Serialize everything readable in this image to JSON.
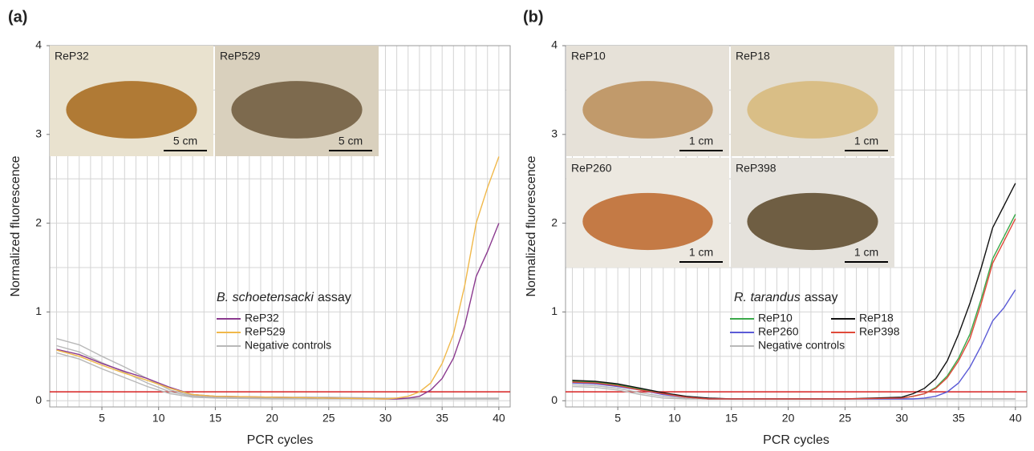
{
  "chart_data": [
    {
      "type": "line",
      "panel_label": "(a)",
      "x_label": "PCR cycles",
      "y_label": "Normalized fluorescence",
      "assay_species": "B. schoetensacki",
      "assay_label": "assay",
      "x": [
        1,
        3,
        5,
        7,
        9,
        11,
        13,
        15,
        20,
        25,
        30,
        31,
        32,
        33,
        34,
        35,
        36,
        37,
        38,
        39,
        40
      ],
      "xlim": [
        0.4,
        41
      ],
      "xticks": [
        5,
        10,
        15,
        20,
        25,
        30,
        35,
        40
      ],
      "ylim": [
        -0.07,
        4
      ],
      "yticks": [
        0,
        1,
        2,
        3,
        4
      ],
      "x_grid": [
        1,
        2,
        3,
        4,
        5,
        6,
        7,
        8,
        9,
        10,
        11,
        12,
        13,
        14,
        15,
        16,
        17,
        18,
        19,
        20,
        21,
        22,
        23,
        24,
        25,
        26,
        27,
        28,
        29,
        30,
        31,
        32,
        33,
        34,
        35,
        36,
        37,
        38,
        39,
        40
      ],
      "y_grid": [
        0,
        0.5,
        1,
        1.5,
        2,
        2.5,
        3,
        3.5
      ],
      "threshold": {
        "value": 0.1,
        "color": "#d62020"
      },
      "legend_columns": 1,
      "series": [
        {
          "name": "ReP32",
          "color": "#8b3a8f",
          "values": [
            0.58,
            0.52,
            0.42,
            0.33,
            0.25,
            0.15,
            0.07,
            0.05,
            0.04,
            0.03,
            0.02,
            0.02,
            0.03,
            0.05,
            0.12,
            0.25,
            0.48,
            0.85,
            1.4,
            1.68,
            2.0
          ]
        },
        {
          "name": "ReP529",
          "color": "#f0b84a",
          "values": [
            0.57,
            0.5,
            0.4,
            0.31,
            0.23,
            0.14,
            0.07,
            0.05,
            0.04,
            0.03,
            0.02,
            0.03,
            0.05,
            0.1,
            0.2,
            0.42,
            0.75,
            1.3,
            2.0,
            2.4,
            2.75
          ]
        },
        {
          "name": "Negative controls",
          "color": "#b8b8b8",
          "values": [
            0.7,
            0.63,
            0.5,
            0.38,
            0.25,
            0.12,
            0.06,
            0.05,
            0.04,
            0.04,
            0.03,
            0.03,
            0.03,
            0.03,
            0.03,
            0.03,
            0.03,
            0.03,
            0.03,
            0.03,
            0.03
          ]
        },
        {
          "color": "#b8b8b8",
          "values": [
            0.62,
            0.55,
            0.43,
            0.32,
            0.2,
            0.1,
            0.05,
            0.04,
            0.03,
            0.03,
            0.02,
            0.02,
            0.02,
            0.02,
            0.02,
            0.02,
            0.02,
            0.02,
            0.02,
            0.02,
            0.02
          ]
        },
        {
          "color": "#b8b8b8",
          "values": [
            0.54,
            0.47,
            0.36,
            0.26,
            0.16,
            0.08,
            0.04,
            0.03,
            0.02,
            0.02,
            0.02,
            0.02,
            0.02,
            0.02,
            0.02,
            0.02,
            0.02,
            0.02,
            0.02,
            0.02,
            0.02
          ]
        }
      ],
      "photos": [
        {
          "label": "ReP32",
          "scale": "5 cm"
        },
        {
          "label": "ReP529",
          "scale": "5 cm"
        }
      ]
    },
    {
      "type": "line",
      "panel_label": "(b)",
      "x_label": "PCR cycles",
      "y_label": "Normalized fluorescence",
      "assay_species": "R. tarandus",
      "assay_label": "assay",
      "x": [
        1,
        3,
        5,
        7,
        9,
        11,
        13,
        15,
        20,
        25,
        30,
        31,
        32,
        33,
        34,
        35,
        36,
        37,
        38,
        39,
        40
      ],
      "xlim": [
        0.4,
        41
      ],
      "xticks": [
        5,
        10,
        15,
        20,
        25,
        30,
        35,
        40
      ],
      "ylim": [
        -0.07,
        4
      ],
      "yticks": [
        0,
        1,
        2,
        3,
        4
      ],
      "x_grid": [
        1,
        2,
        3,
        4,
        5,
        6,
        7,
        8,
        9,
        10,
        11,
        12,
        13,
        14,
        15,
        16,
        17,
        18,
        19,
        20,
        21,
        22,
        23,
        24,
        25,
        26,
        27,
        28,
        29,
        30,
        31,
        32,
        33,
        34,
        35,
        36,
        37,
        38,
        39,
        40
      ],
      "y_grid": [
        0,
        0.5,
        1,
        1.5,
        2,
        2.5,
        3,
        3.5
      ],
      "threshold": {
        "value": 0.1,
        "color": "#d62020"
      },
      "legend_columns": 2,
      "series": [
        {
          "name": "ReP10",
          "color": "#3aa84a",
          "values": [
            0.22,
            0.21,
            0.18,
            0.13,
            0.08,
            0.04,
            0.02,
            0.02,
            0.02,
            0.02,
            0.03,
            0.05,
            0.08,
            0.15,
            0.28,
            0.48,
            0.75,
            1.15,
            1.6,
            1.85,
            2.1
          ]
        },
        {
          "name": "ReP18",
          "color": "#111111",
          "values": [
            0.23,
            0.22,
            0.19,
            0.14,
            0.09,
            0.05,
            0.03,
            0.02,
            0.02,
            0.02,
            0.04,
            0.08,
            0.14,
            0.25,
            0.45,
            0.75,
            1.1,
            1.5,
            1.95,
            2.2,
            2.45
          ]
        },
        {
          "name": "ReP260",
          "color": "#5a5ad6",
          "values": [
            0.2,
            0.19,
            0.16,
            0.12,
            0.07,
            0.04,
            0.02,
            0.02,
            0.02,
            0.02,
            0.02,
            0.02,
            0.03,
            0.05,
            0.1,
            0.2,
            0.38,
            0.62,
            0.9,
            1.05,
            1.25
          ]
        },
        {
          "name": "ReP398",
          "color": "#e04a3a",
          "values": [
            0.21,
            0.2,
            0.17,
            0.12,
            0.08,
            0.04,
            0.02,
            0.02,
            0.02,
            0.02,
            0.03,
            0.05,
            0.08,
            0.14,
            0.26,
            0.45,
            0.7,
            1.1,
            1.55,
            1.8,
            2.05
          ]
        },
        {
          "name": "Negative controls",
          "color": "#b8b8b8",
          "values": [
            0.18,
            0.17,
            0.14,
            0.09,
            0.05,
            0.03,
            0.02,
            0.02,
            0.02,
            0.02,
            0.02,
            0.02,
            0.02,
            0.02,
            0.02,
            0.02,
            0.02,
            0.02,
            0.02,
            0.02,
            0.02
          ]
        },
        {
          "color": "#b8b8b8",
          "values": [
            0.16,
            0.15,
            0.12,
            0.07,
            0.03,
            0.02,
            0.02,
            0.02,
            0.02,
            0.02,
            0.02,
            0.02,
            0.02,
            0.02,
            0.02,
            0.02,
            0.02,
            0.02,
            0.02,
            0.02,
            0.02
          ]
        }
      ],
      "photos": [
        {
          "label": "ReP10",
          "scale": "1 cm"
        },
        {
          "label": "ReP18",
          "scale": "1 cm"
        },
        {
          "label": "ReP260",
          "scale": "1 cm"
        },
        {
          "label": "ReP398",
          "scale": "1 cm"
        }
      ]
    }
  ]
}
